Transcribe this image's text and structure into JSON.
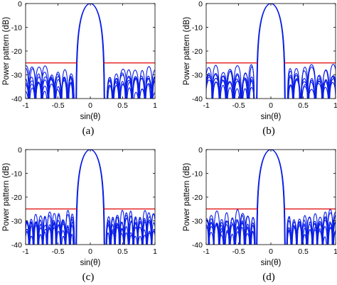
{
  "chart_data": [
    {
      "type": "line",
      "caption": "(a)",
      "xlabel": "sin(θ)",
      "ylabel": "Power  pattern (dB)",
      "xlim": [
        -1,
        1
      ],
      "ylim": [
        -40,
        0
      ],
      "xticks": [
        "-1",
        "-0.5",
        "0",
        "0.5",
        "1"
      ],
      "yticks": [
        "0",
        "-10",
        "-20",
        "-30",
        "-40"
      ],
      "mainlobe": {
        "peak_db": 0,
        "first_null_sin": 0.22
      },
      "sidelobe_envelope_db": -26,
      "sidelobe_peaks_sin": [
        0.3,
        0.4,
        0.5,
        0.6,
        0.7,
        0.8,
        0.9,
        1.0
      ],
      "mask_db": -25,
      "mask_segments": [
        [
          -1,
          -0.2
        ],
        [
          0.2,
          1
        ]
      ],
      "series_color": "#0a1ee6",
      "mask_color": "#e00000"
    },
    {
      "type": "line",
      "caption": "(b)",
      "xlabel": "sin(θ)",
      "ylabel": "Power  pattern (dB)",
      "xlim": [
        -1,
        1
      ],
      "ylim": [
        -40,
        0
      ],
      "xticks": [
        "-1",
        "-0.5",
        "0",
        "0.5",
        "1"
      ],
      "yticks": [
        "0",
        "-10",
        "-20",
        "-30",
        "-40"
      ],
      "mainlobe": {
        "peak_db": 0,
        "first_null_sin": 0.22
      },
      "sidelobe_envelope_db": -25,
      "sidelobe_peaks_sin": [
        0.3,
        0.4,
        0.52,
        0.63,
        0.74,
        0.85,
        0.96
      ],
      "mask_db": -25,
      "mask_segments": [
        [
          -1,
          -0.2
        ],
        [
          0.2,
          1
        ]
      ],
      "series_color": "#0a1ee6",
      "mask_color": "#e00000"
    },
    {
      "type": "line",
      "caption": "(c)",
      "xlabel": "sin(θ)",
      "ylabel": "Power  pattern (dB)",
      "xlim": [
        -1,
        1
      ],
      "ylim": [
        -40,
        0
      ],
      "xticks": [
        "-1",
        "-0.5",
        "0",
        "0.5",
        "1"
      ],
      "yticks": [
        "0",
        "-10",
        "-20",
        "-30",
        "-40"
      ],
      "mainlobe": {
        "peak_db": 0,
        "first_null_sin": 0.22
      },
      "sidelobe_envelope_db": -25,
      "sidelobe_peaks_sin": [
        0.28,
        0.35,
        0.42,
        0.49,
        0.56,
        0.63,
        0.7,
        0.77,
        0.84,
        0.91,
        0.98
      ],
      "mask_db": -25,
      "mask_segments": [
        [
          -1,
          -0.2
        ],
        [
          0.2,
          1
        ]
      ],
      "series_color": "#0a1ee6",
      "mask_color": "#e00000"
    },
    {
      "type": "line",
      "caption": "(d)",
      "xlabel": "sin(θ)",
      "ylabel": "Power  pattern (dB)",
      "xlim": [
        -1,
        1
      ],
      "ylim": [
        -40,
        0
      ],
      "xticks": [
        "-1",
        "-0.5",
        "0",
        "0.5",
        "1"
      ],
      "yticks": [
        "0",
        "-10",
        "-20",
        "-30",
        "-40"
      ],
      "mainlobe": {
        "peak_db": 0,
        "first_null_sin": 0.22
      },
      "sidelobe_envelope_db": -25,
      "sidelobe_peaks_sin": [
        0.28,
        0.36,
        0.44,
        0.52,
        0.6,
        0.68,
        0.76,
        0.84,
        0.92,
        1.0
      ],
      "mask_db": -25,
      "mask_segments": [
        [
          -1,
          -0.2
        ],
        [
          0.2,
          1
        ]
      ],
      "series_color": "#0a1ee6",
      "mask_color": "#e00000"
    }
  ]
}
